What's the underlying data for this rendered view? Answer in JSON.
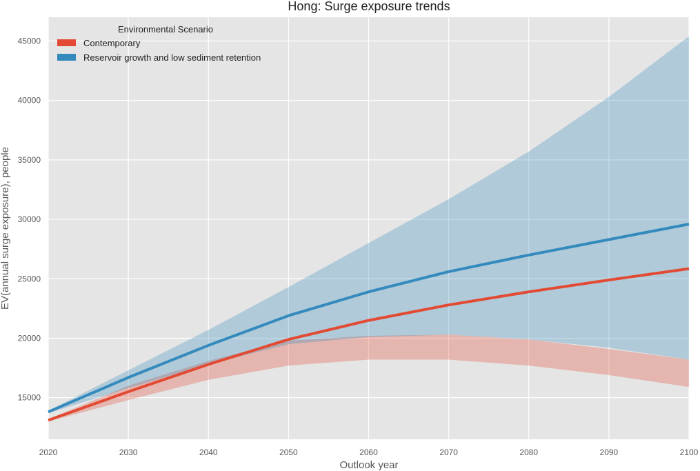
{
  "chart_data": {
    "type": "line",
    "title": "Hong: Surge exposure trends",
    "xlabel": "Outlook year",
    "ylabel": "EV(annual surge exposure), people",
    "x": [
      2020,
      2030,
      2040,
      2050,
      2060,
      2070,
      2080,
      2090,
      2100
    ],
    "xlim": [
      2020,
      2100
    ],
    "ylim": [
      11500,
      47000
    ],
    "xticks": [
      2020,
      2030,
      2040,
      2050,
      2060,
      2070,
      2080,
      2090,
      2100
    ],
    "yticks": [
      15000,
      20000,
      25000,
      30000,
      35000,
      40000,
      45000
    ],
    "grid": true,
    "legend": {
      "title": "Environmental Scenario",
      "placement": "top-left"
    },
    "series": [
      {
        "name": "Contemporary",
        "color": "#E24A33",
        "values": [
          13100,
          15500,
          17800,
          19900,
          21500,
          22800,
          23900,
          24900,
          25850
        ],
        "lower": [
          13000,
          14800,
          16500,
          17700,
          18200,
          18200,
          17700,
          16900,
          15900
        ],
        "upper": [
          13200,
          16000,
          18100,
          19800,
          20200,
          20300,
          19900,
          19100,
          18200
        ]
      },
      {
        "name": "Reservoir growth and low sediment retention",
        "color": "#348ABD",
        "values": [
          13800,
          16700,
          19400,
          21900,
          23900,
          25600,
          27000,
          28300,
          29600
        ],
        "lower": [
          13700,
          15800,
          17800,
          19500,
          20100,
          20300,
          19900,
          19200,
          18200
        ],
        "upper": [
          13900,
          17300,
          20700,
          24300,
          28000,
          31700,
          35700,
          40300,
          45400
        ]
      }
    ]
  }
}
